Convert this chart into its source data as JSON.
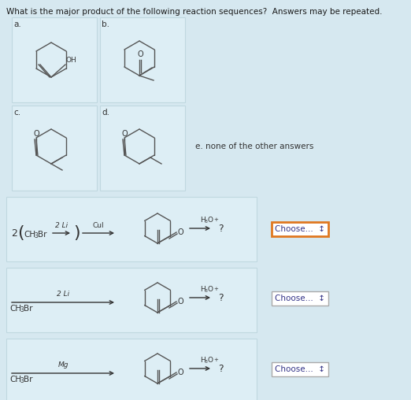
{
  "bg_color": "#d6e8f0",
  "title": "What is the major product of the following reaction sequences?  Answers may be repeated.",
  "title_fontsize": 7.5,
  "title_color": "#1a1a1a",
  "choose_text": "Choose...  ↕",
  "choose_fontsize": 7.5,
  "choose_border_orange": "#e07820",
  "choose_border_gray": "#aaaaaa",
  "choose_text_color": "#333388",
  "line_color": "#555555",
  "text_color": "#333333",
  "white_box_color": "#ddeef5",
  "white_box_edge": "#c0d8e0",
  "e_label": "e. none of the other answers",
  "question_mark": "?",
  "lw": 1.0,
  "ring_r": 20
}
